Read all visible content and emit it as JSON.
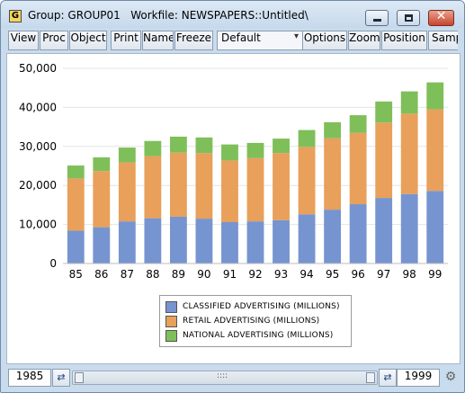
{
  "window": {
    "title": "Group: GROUP01   Workfile: NEWSPAPERS::Untitled\\",
    "app_icon_letter": "G",
    "close_glyph": "✕"
  },
  "toolbar": {
    "view": "View",
    "proc": "Proc",
    "object": "Object",
    "print": "Print",
    "name": "Name",
    "freeze": "Freeze",
    "template_value": "Default",
    "options": "Options",
    "zoom": "Zoom",
    "position": "Position",
    "sample": "Sampl"
  },
  "colors": {
    "classified": "#7694d0",
    "retail": "#e8a05a",
    "national": "#7fbf5a"
  },
  "chart_data": {
    "type": "bar",
    "stacked": true,
    "categories": [
      "85",
      "86",
      "87",
      "88",
      "89",
      "90",
      "91",
      "92",
      "93",
      "94",
      "95",
      "96",
      "97",
      "98",
      "99"
    ],
    "series": [
      {
        "name": "CLASSIFIED ADVERTISING (MILLIONS)",
        "color": "#7694d0",
        "values": [
          8400,
          9300,
          10800,
          11600,
          12000,
          11500,
          10600,
          10800,
          11100,
          12600,
          13800,
          15200,
          16800,
          17800,
          18600
        ]
      },
      {
        "name": "RETAIL ADVERTISING (MILLIONS)",
        "color": "#e8a05a",
        "values": [
          13400,
          14400,
          15100,
          15900,
          16400,
          16800,
          15800,
          16200,
          17200,
          17300,
          18300,
          18300,
          19300,
          20600,
          20900
        ]
      },
      {
        "name": "NATIONAL ADVERTISING (MILLIONS)",
        "color": "#7fbf5a",
        "values": [
          3300,
          3500,
          3800,
          3900,
          4100,
          4000,
          4100,
          3900,
          3700,
          4300,
          4100,
          4500,
          5400,
          5700,
          6900
        ]
      }
    ],
    "yticks": [
      "0",
      "10,000",
      "20,000",
      "30,000",
      "40,000",
      "50,000"
    ],
    "ylim": [
      0,
      50000
    ],
    "grid": true,
    "legend_position": "bottom-center"
  },
  "statusbar": {
    "start_year": "1985",
    "end_year": "1999",
    "arrow_glyph": "⇄",
    "gear_glyph": "⚙",
    "grip": "::::"
  }
}
